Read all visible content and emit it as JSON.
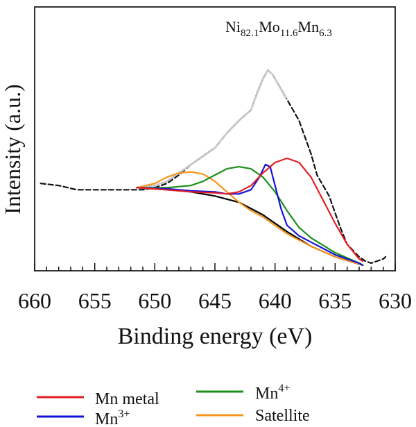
{
  "chart_data": {
    "type": "line",
    "annotation": {
      "base1": "Ni",
      "sub1": "82.1",
      "base2": "Mo",
      "sub2": "11.6",
      "base3": "Mn",
      "sub3": "6.3"
    },
    "xlabel": "Binding energy (eV)",
    "ylabel": "Intensity (a.u.)",
    "xlim": [
      660,
      630
    ],
    "ylim": [
      0,
      1
    ],
    "x_ticks": [
      660,
      655,
      650,
      645,
      640,
      635,
      630
    ],
    "legend": {
      "placement": "bottom",
      "items": [
        {
          "base": "Mn metal",
          "sup": ""
        },
        {
          "base": "Mn",
          "sup": "3+"
        },
        {
          "base": "Mn",
          "sup": "4+"
        },
        {
          "base": "Satellite",
          "sup": ""
        }
      ]
    },
    "series": [
      {
        "key": "raw",
        "color": "#111111",
        "style": "dashed",
        "points": [
          [
            659.5,
            0.39
          ],
          [
            658,
            0.38
          ],
          [
            656.5,
            0.36
          ],
          [
            655,
            0.36
          ],
          [
            653,
            0.36
          ],
          [
            652,
            0.36
          ],
          [
            651,
            0.36
          ],
          [
            650,
            0.37
          ],
          [
            649,
            0.39
          ],
          [
            648,
            0.43
          ],
          [
            647,
            0.48
          ],
          [
            646,
            0.52
          ],
          [
            645,
            0.56
          ],
          [
            644,
            0.63
          ],
          [
            643,
            0.69
          ],
          [
            642,
            0.74
          ],
          [
            641.5,
            0.82
          ],
          [
            641,
            0.89
          ],
          [
            640.6,
            0.93
          ],
          [
            640.2,
            0.91
          ],
          [
            639.5,
            0.84
          ],
          [
            639,
            0.79
          ],
          [
            638.5,
            0.74
          ],
          [
            638,
            0.69
          ],
          [
            637.5,
            0.61
          ],
          [
            637,
            0.53
          ],
          [
            636.5,
            0.43
          ],
          [
            636,
            0.38
          ],
          [
            635.5,
            0.33
          ],
          [
            635,
            0.25
          ],
          [
            634.5,
            0.17
          ],
          [
            634,
            0.1
          ],
          [
            633.5,
            0.07
          ],
          [
            633,
            0.04
          ],
          [
            632.5,
            0.02
          ],
          [
            632,
            0.01
          ],
          [
            631.5,
            0.02
          ],
          [
            631,
            0.03
          ],
          [
            630.8,
            0.04
          ]
        ]
      },
      {
        "key": "fit-envelope",
        "color": "#c8c8c8",
        "style": "dotted",
        "points": [
          [
            651.5,
            0.37
          ],
          [
            650,
            0.38
          ],
          [
            649,
            0.4
          ],
          [
            648,
            0.44
          ],
          [
            647,
            0.48
          ],
          [
            646,
            0.52
          ],
          [
            645,
            0.56
          ],
          [
            644,
            0.63
          ],
          [
            643,
            0.69
          ],
          [
            642,
            0.74
          ],
          [
            641.5,
            0.82
          ],
          [
            641,
            0.89
          ],
          [
            640.6,
            0.93
          ],
          [
            640.2,
            0.91
          ],
          [
            639.5,
            0.84
          ],
          [
            639,
            0.79
          ]
        ]
      },
      {
        "key": "background",
        "color": "#000000",
        "style": "solid",
        "points": [
          [
            651.5,
            0.37
          ],
          [
            649,
            0.36
          ],
          [
            647,
            0.35
          ],
          [
            645,
            0.33
          ],
          [
            643,
            0.3
          ],
          [
            641,
            0.24
          ],
          [
            639,
            0.16
          ],
          [
            637,
            0.09
          ],
          [
            635,
            0.04
          ],
          [
            633,
            0.005
          ],
          [
            632.7,
            0.0
          ]
        ]
      },
      {
        "key": "satellite",
        "color": "#f7941d",
        "style": "solid",
        "points": [
          [
            651.5,
            0.37
          ],
          [
            650,
            0.39
          ],
          [
            649,
            0.42
          ],
          [
            648,
            0.44
          ],
          [
            647,
            0.445
          ],
          [
            646,
            0.435
          ],
          [
            645,
            0.4
          ],
          [
            644,
            0.35
          ],
          [
            643,
            0.3
          ],
          [
            642,
            0.26
          ],
          [
            641,
            0.23
          ],
          [
            640,
            0.19
          ],
          [
            639,
            0.15
          ],
          [
            638,
            0.12
          ],
          [
            637,
            0.09
          ],
          [
            635,
            0.04
          ],
          [
            633,
            0.005
          ],
          [
            632.7,
            0.0
          ]
        ]
      },
      {
        "key": "mn4",
        "color": "#1a8f1a",
        "style": "solid",
        "points": [
          [
            651.5,
            0.37
          ],
          [
            649,
            0.37
          ],
          [
            647,
            0.38
          ],
          [
            646,
            0.4
          ],
          [
            645,
            0.43
          ],
          [
            644,
            0.46
          ],
          [
            643,
            0.47
          ],
          [
            642,
            0.46
          ],
          [
            641,
            0.42
          ],
          [
            640,
            0.35
          ],
          [
            639,
            0.26
          ],
          [
            638,
            0.18
          ],
          [
            637,
            0.13
          ],
          [
            635,
            0.06
          ],
          [
            633,
            0.01
          ],
          [
            632.7,
            0.0
          ]
        ]
      },
      {
        "key": "mn3",
        "color": "#1414d6",
        "style": "solid",
        "points": [
          [
            651.5,
            0.37
          ],
          [
            649,
            0.365
          ],
          [
            647,
            0.355
          ],
          [
            645,
            0.35
          ],
          [
            644,
            0.34
          ],
          [
            643,
            0.34
          ],
          [
            642,
            0.36
          ],
          [
            641.3,
            0.42
          ],
          [
            640.8,
            0.48
          ],
          [
            640.4,
            0.47
          ],
          [
            640,
            0.38
          ],
          [
            639.5,
            0.27
          ],
          [
            639,
            0.19
          ],
          [
            638,
            0.14
          ],
          [
            637,
            0.11
          ],
          [
            635,
            0.05
          ],
          [
            633,
            0.01
          ],
          [
            632.7,
            0.0
          ]
        ]
      },
      {
        "key": "mn-metal",
        "color": "#e31e24",
        "style": "solid",
        "points": [
          [
            651.5,
            0.37
          ],
          [
            649,
            0.36
          ],
          [
            647,
            0.35
          ],
          [
            645,
            0.345
          ],
          [
            644,
            0.34
          ],
          [
            643,
            0.35
          ],
          [
            642,
            0.38
          ],
          [
            641,
            0.44
          ],
          [
            640,
            0.49
          ],
          [
            639,
            0.51
          ],
          [
            638,
            0.49
          ],
          [
            637,
            0.42
          ],
          [
            636,
            0.31
          ],
          [
            635,
            0.2
          ],
          [
            634,
            0.1
          ],
          [
            633,
            0.03
          ],
          [
            632.7,
            0.02
          ]
        ]
      }
    ]
  }
}
